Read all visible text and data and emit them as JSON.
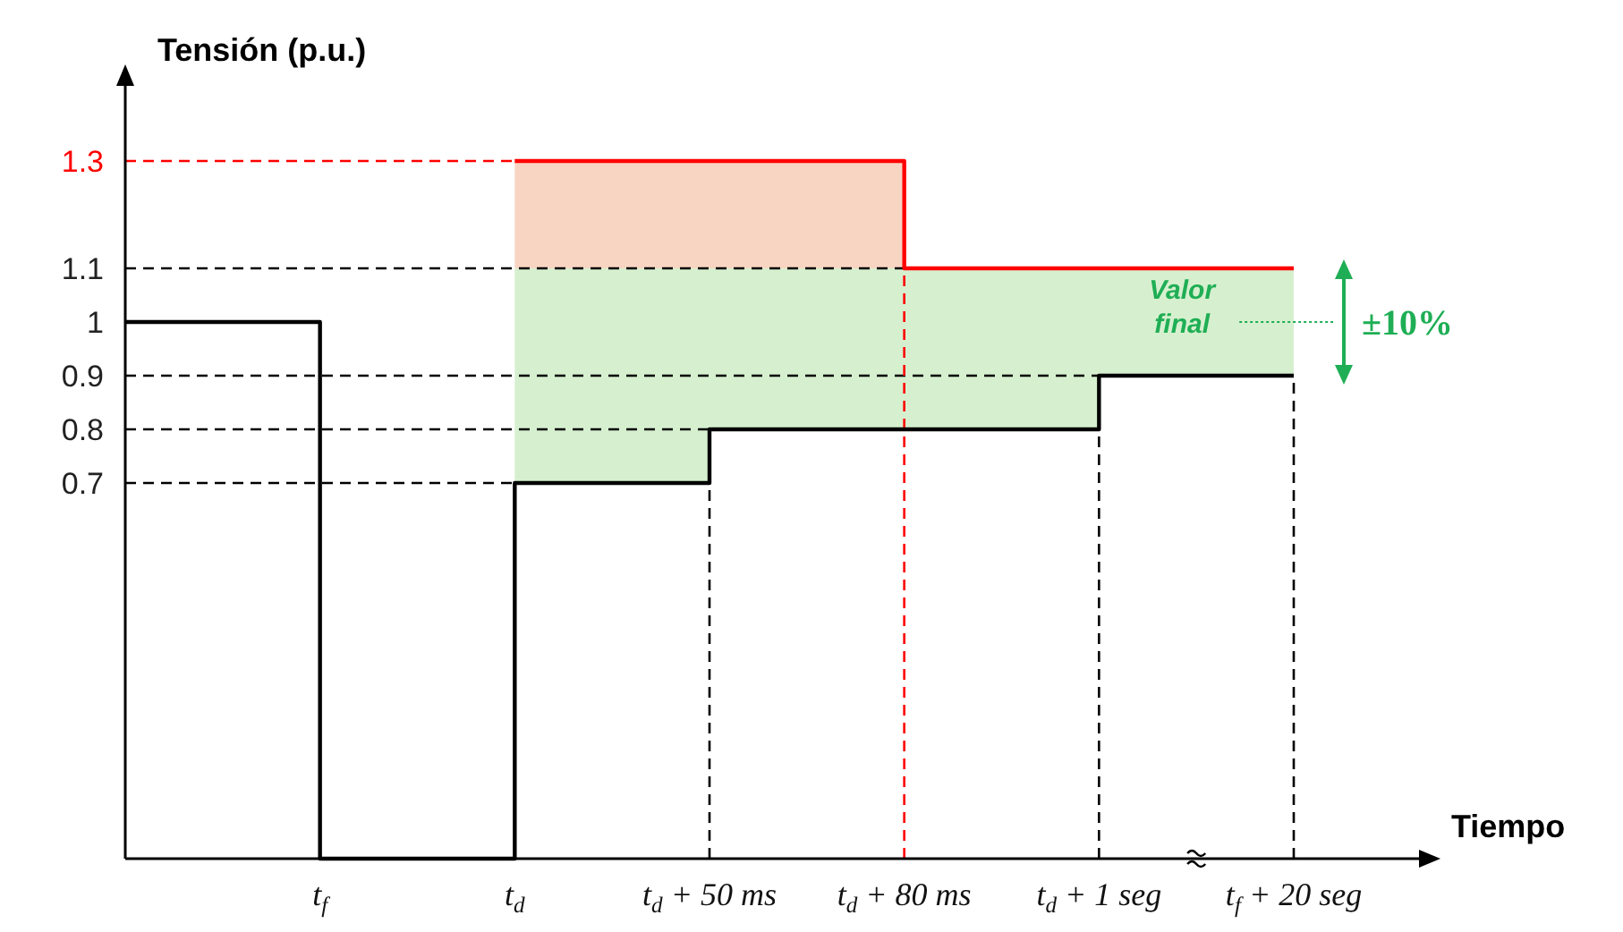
{
  "chart_data": {
    "type": "step",
    "ylabel": "Tensión (p.u.)",
    "xlabel": "Tiempo",
    "categories": [
      null,
      "t$_{f}$",
      "t$_{d}$",
      "t$_{d}$ + 50 ms",
      "t$_{d}$ + 80 ms",
      "t$_{d}$ + 1 seg",
      "t$_{f}$ + 20 seg"
    ],
    "series": [
      {
        "type": "area",
        "color": "#f8d5c2",
        "values": [
          null,
          null,
          1.3,
          1.3,
          1.1,
          null,
          null
        ]
      },
      {
        "type": "area",
        "color": "#d6f0cf",
        "values": [
          null,
          null,
          1.1,
          1.1,
          1.1,
          1.1,
          1.1
        ]
      },
      {
        "color": "#000000",
        "values": [
          1,
          0,
          0.7,
          0.8,
          0.8,
          0.9,
          0.9
        ]
      },
      {
        "color": "#ff0000",
        "values": [
          null,
          null,
          1.3,
          1.3,
          1.1,
          1.1,
          1.1
        ]
      }
    ],
    "ylim": [
      0,
      1.44
    ],
    "yticks": [
      0.7,
      0.8,
      0.9,
      1,
      1.1,
      1.3
    ],
    "ref_lines": [
      {
        "axis": "y",
        "value": 1.3,
        "color": "#ff0000",
        "line_style": "dashed"
      },
      {
        "axis": "y",
        "value": 1.1,
        "color": "#000000",
        "line_style": "dashed"
      },
      {
        "axis": "y",
        "value": 0.9,
        "color": "#000000",
        "line_style": "dashed"
      },
      {
        "axis": "y",
        "value": 0.8,
        "color": "#000000",
        "line_style": "dashed"
      },
      {
        "axis": "y",
        "value": 0.7,
        "color": "#000000",
        "line_style": "dashed"
      },
      {
        "axis": "x",
        "value": "t$_{d}$ + 50 ms",
        "color": "#000000",
        "line_style": "dashed"
      },
      {
        "axis": "x",
        "value": "t$_{d}$ + 80 ms",
        "color": "#ff0000",
        "line_style": "dashed"
      },
      {
        "axis": "x",
        "value": "t$_{d}$ + 1 seg",
        "color": "#000000",
        "line_style": "dashed"
      },
      {
        "axis": "x",
        "value": "t$_{f}$ + 20 seg",
        "color": "#000000",
        "line_style": "dashed"
      }
    ],
    "annotations": [
      "Valor final",
      "±10%"
    ],
    "grid": false
  }
}
